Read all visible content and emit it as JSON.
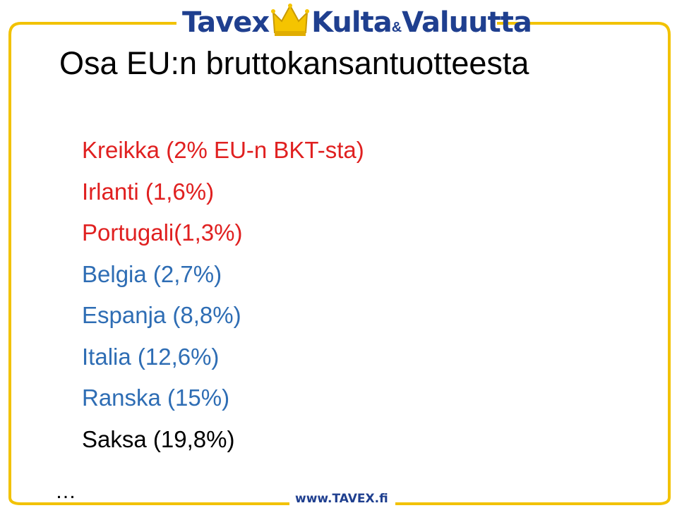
{
  "logo": {
    "word1": "Tavex",
    "word2": "Kulta",
    "amp": "&",
    "word3": "Valuutta"
  },
  "title": "Osa EU:n bruttokansantuotteesta",
  "items": [
    {
      "text": "Kreikka (2% EU-n BKT-sta)",
      "color": "#e02020"
    },
    {
      "text": "Irlanti (1,6%)",
      "color": "#e02020"
    },
    {
      "text": "Portugali(1,3%)",
      "color": "#e02020"
    },
    {
      "text": "Belgia (2,7%)",
      "color": "#2e6db4"
    },
    {
      "text": "Espanja (8,8%)",
      "color": "#2e6db4"
    },
    {
      "text": "Italia (12,6%)",
      "color": "#2e6db4"
    },
    {
      "text": "Ranska (15%)",
      "color": "#2e6db4"
    },
    {
      "text": "Saksa (19,8%)",
      "color": "#000000"
    }
  ],
  "ellipsis": "…",
  "footer_url": "www.TAVEX.fi",
  "colors": {
    "frame": "#f2c200",
    "brand_blue": "#1f3f8f",
    "crown": "#f5c400"
  }
}
